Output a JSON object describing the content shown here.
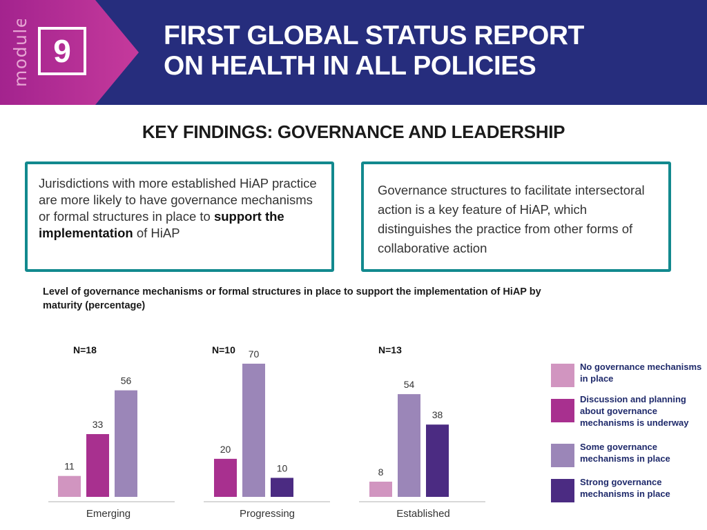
{
  "header": {
    "module_label": "module",
    "module_number": "9",
    "title_line1": "FIRST GLOBAL STATUS REPORT",
    "title_line2": "ON HEALTH IN ALL POLICIES"
  },
  "subtitle": "KEY FINDINGS: GOVERNANCE AND LEADERSHIP",
  "box_left": {
    "text_before": "Jurisdictions with more established HiAP practice are more likely to have governance mechanisms or formal structures in place to ",
    "text_bold": "support the implementation",
    "text_after": " of HiAP"
  },
  "box_right": {
    "text": "Governance structures to facilitate intersectoral action is a key feature of HiAP, which distinguishes the practice from other forms of collaborative action"
  },
  "colors": {
    "header_bg": "#262d7d",
    "module_gradient_start": "#a3238e",
    "module_gradient_end": "#c53a9c",
    "box_border": "#12898e",
    "no_governance": "#d195c0",
    "discussion": "#a8308f",
    "some": "#9b86b8",
    "strong": "#4b2b82",
    "axis": "#cccccc"
  },
  "chart_data": {
    "type": "bar",
    "title": "Level of governance mechanisms or formal structures in place to support the implementation of HiAP by maturity (percentage)",
    "categories": [
      "Emerging",
      "Progressing",
      "Established"
    ],
    "group_sizes": [
      "N=18",
      "N=10",
      "N=13"
    ],
    "series": [
      {
        "name": "No governance mechanisms in place",
        "values": [
          11,
          null,
          8
        ]
      },
      {
        "name": "Discussion and planning about governance mechanisms is underway",
        "values": [
          33,
          20,
          null
        ]
      },
      {
        "name": "Some governance mechanisms in place",
        "values": [
          56,
          70,
          54
        ]
      },
      {
        "name": "Strong governance mechanisms in place",
        "values": [
          null,
          10,
          38
        ]
      }
    ],
    "ylim": [
      0,
      70
    ],
    "xlabel": "",
    "ylabel": "",
    "legend_position": "right"
  }
}
